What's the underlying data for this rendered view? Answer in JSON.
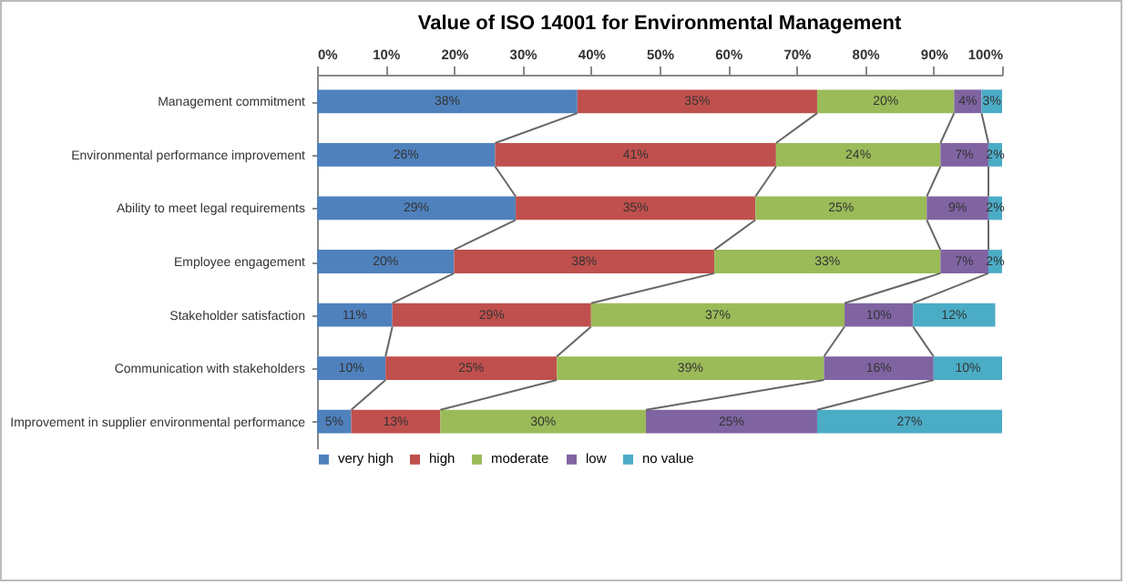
{
  "chart_data": {
    "type": "bar",
    "orientation": "horizontal",
    "stacked": true,
    "title": "Value of ISO 14001 for Environmental  Management",
    "categories": [
      "Management commitment",
      "Environmental performance improvement",
      "Ability to meet legal requirements",
      "Employee engagement",
      "Stakeholder satisfaction",
      "Communication with stakeholders",
      "Improvement in supplier environmental performance"
    ],
    "series": [
      {
        "name": "very high",
        "color": "#4f81bd",
        "values": [
          38,
          26,
          29,
          20,
          11,
          10,
          5
        ],
        "value_labels": [
          "38%",
          "26%",
          "29%",
          "20%",
          "11%",
          "10%",
          "5%"
        ]
      },
      {
        "name": "high",
        "color": "#c0504d",
        "values": [
          35,
          41,
          35,
          38,
          29,
          25,
          13
        ],
        "value_labels": [
          "35%",
          "41%",
          "35%",
          "38%",
          "29%",
          "25%",
          "13%"
        ]
      },
      {
        "name": "moderate",
        "color": "#9bbb59",
        "values": [
          20,
          24,
          25,
          33,
          37,
          39,
          30
        ],
        "value_labels": [
          "20%",
          "24%",
          "25%",
          "33%",
          "37%",
          "39%",
          "30%"
        ]
      },
      {
        "name": "low",
        "color": "#8064a2",
        "values": [
          4,
          7,
          9,
          7,
          10,
          16,
          25
        ],
        "value_labels": [
          "4%",
          "7%",
          "9%",
          "7%",
          "10%",
          "16%",
          "25%"
        ]
      },
      {
        "name": "no value",
        "color": "#4bacc6",
        "values": [
          3,
          2,
          2,
          2,
          12,
          10,
          27
        ],
        "value_labels": [
          "3%",
          "2%",
          "2%",
          "2%",
          "12%",
          "10%",
          "27%"
        ]
      }
    ],
    "xlim": [
      0,
      100
    ],
    "xticks": [
      {
        "value": 0,
        "label": "0%"
      },
      {
        "value": 10,
        "label": "10%"
      },
      {
        "value": 20,
        "label": "20%"
      },
      {
        "value": 30,
        "label": "30%"
      },
      {
        "value": 40,
        "label": "40%"
      },
      {
        "value": 50,
        "label": "50%"
      },
      {
        "value": 60,
        "label": "60%"
      },
      {
        "value": 70,
        "label": "70%"
      },
      {
        "value": 80,
        "label": "80%"
      },
      {
        "value": 90,
        "label": "90%"
      },
      {
        "value": 100,
        "label": "100%"
      }
    ],
    "grid": false,
    "legend": "bottom"
  }
}
